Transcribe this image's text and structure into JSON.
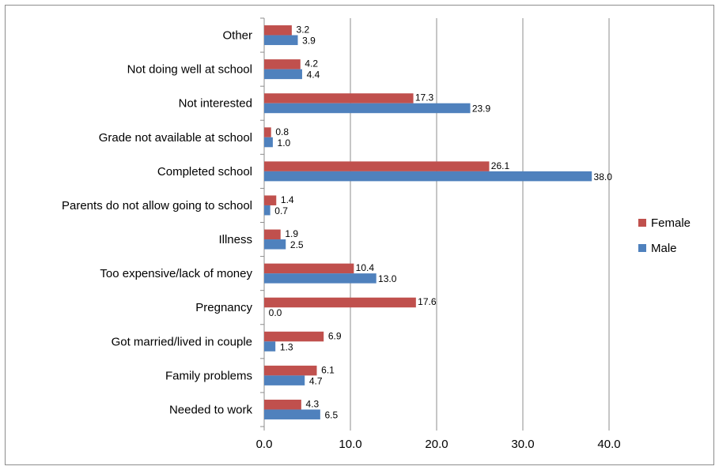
{
  "chart_data": {
    "type": "bar",
    "orientation": "horizontal",
    "categories": [
      "Other",
      "Not doing well at school",
      "Not interested",
      "Grade not available at school",
      "Completed school",
      "Parents do not allow going to school",
      "Illness",
      "Too expensive/lack of money",
      "Pregnancy",
      "Got married/lived in couple",
      "Family problems",
      "Needed to work"
    ],
    "series": [
      {
        "name": "Female",
        "color": "#c0504d",
        "values": [
          3.2,
          4.2,
          17.3,
          0.8,
          26.1,
          1.4,
          1.9,
          10.4,
          17.6,
          6.9,
          6.1,
          4.3
        ],
        "labels": [
          "3.2",
          "4.2",
          "17.3",
          "0.8",
          "26.1",
          "1.4",
          "1.9",
          "10.4",
          "17.6",
          "6.9",
          "6.1",
          "4.3"
        ]
      },
      {
        "name": "Male",
        "color": "#4f81bd",
        "values": [
          3.9,
          4.4,
          23.9,
          1.0,
          38.0,
          0.7,
          2.5,
          13.0,
          0.0,
          1.3,
          4.7,
          6.5
        ],
        "labels": [
          "3.9",
          "4.4",
          "23.9",
          "1.0",
          "38.0",
          "0.7",
          "2.5",
          "13.0",
          "0.0",
          "1.3",
          "4.7",
          "6.5"
        ]
      }
    ],
    "xlim": [
      0,
      40
    ],
    "xticks": [
      "0.0",
      "10.0",
      "20.0",
      "30.0",
      "40.0"
    ],
    "grid": true,
    "legend_position": "right",
    "title": "",
    "xlabel": "",
    "ylabel": ""
  }
}
